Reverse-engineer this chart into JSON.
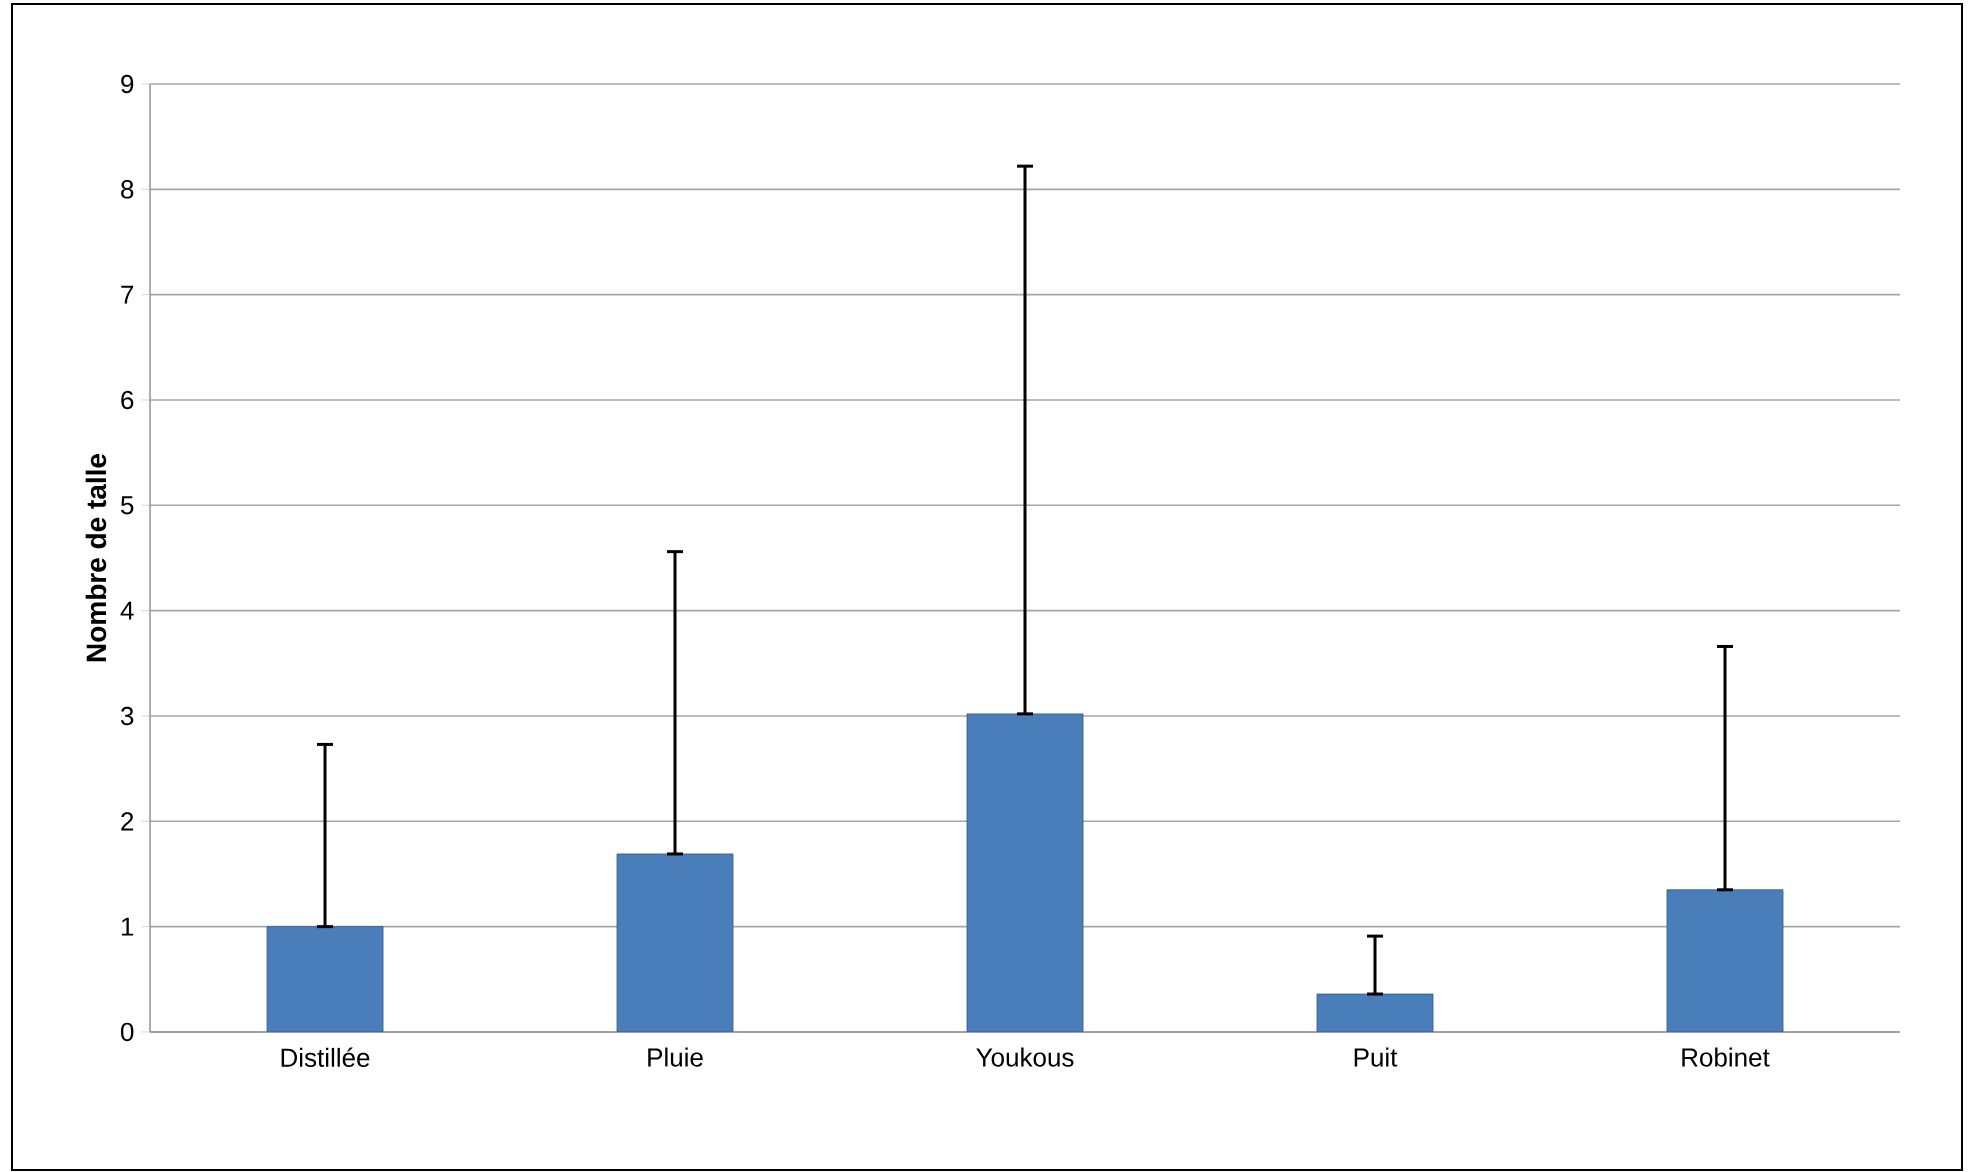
{
  "chart_data": {
    "type": "bar",
    "ylabel": "**Nombre de talle**",
    "categories": [
      "Distillée",
      "Pluie",
      "Youkous",
      "Puit",
      "Robinet"
    ],
    "values": [
      1.0,
      1.69,
      3.02,
      0.36,
      1.35
    ],
    "errors": [
      [
        1.0,
        2.73
      ],
      [
        1.69,
        4.56
      ],
      [
        3.02,
        8.22
      ],
      [
        0.36,
        0.91
      ],
      [
        1.35,
        3.66
      ]
    ],
    "color": "#4a7ebb",
    "ylim": [
      0,
      9
    ],
    "yticks": [
      0,
      1,
      2,
      3,
      4,
      5,
      6,
      7,
      8,
      9
    ],
    "grid": "y"
  }
}
